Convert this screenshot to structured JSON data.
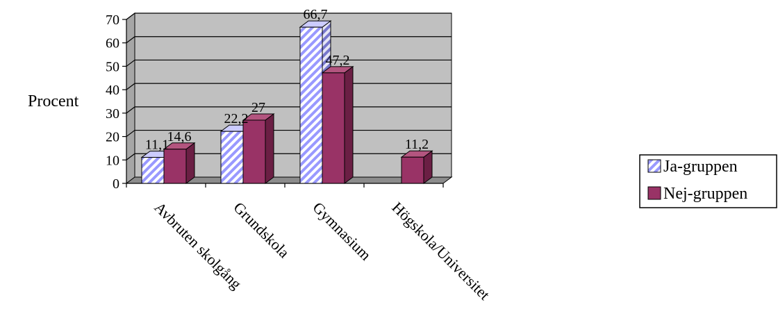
{
  "chart_data": {
    "type": "bar",
    "ylabel": "Procent",
    "ylim": [
      0,
      70
    ],
    "yticks": [
      0,
      10,
      20,
      30,
      40,
      50,
      60,
      70
    ],
    "grid": true,
    "categories": [
      "Avbruten skolgång",
      "Grundskola",
      "Gymnasium",
      "Högskola/Universitet"
    ],
    "series": [
      {
        "name": "Ja-gruppen",
        "values": [
          11.1,
          22.2,
          66.7,
          0
        ],
        "data_labels": [
          "11,1",
          "22,2",
          "66,7",
          ""
        ],
        "pattern": "diagonal-stripes",
        "color": "#9999ff"
      },
      {
        "name": "Nej-gruppen",
        "values": [
          14.6,
          27,
          47.2,
          11.2
        ],
        "data_labels": [
          "14,6",
          "27",
          "47,2",
          "11,2"
        ],
        "pattern": "solid",
        "color": "#993366"
      }
    ],
    "legend_position": "right",
    "plot_background": "#c0c0c0"
  }
}
